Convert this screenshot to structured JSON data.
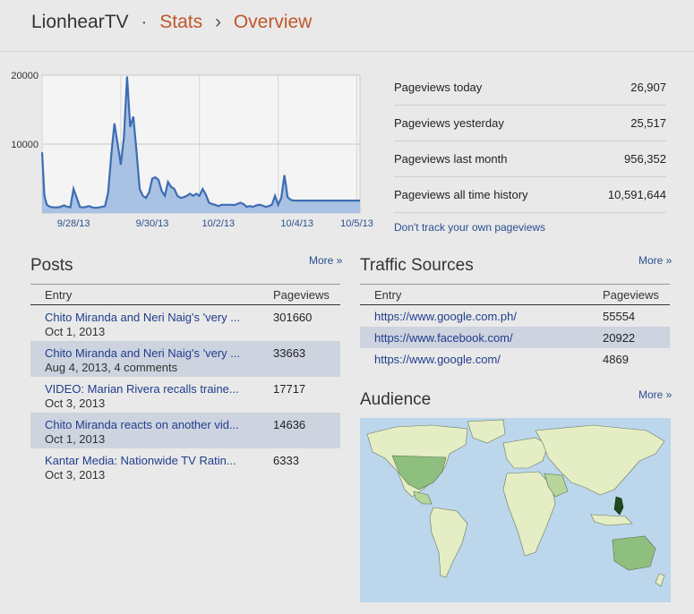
{
  "header": {
    "blog": "LionhearTV",
    "dot": "·",
    "stats": "Stats",
    "arrow": "›",
    "overview": "Overview"
  },
  "chart_data": {
    "type": "area",
    "ylim": [
      0,
      20000
    ],
    "yticks": [
      "20000",
      "10000"
    ],
    "xticks": [
      "9/28/13",
      "9/30/13",
      "10/2/13",
      "10/4/13",
      "10/5/13"
    ],
    "x": [
      0,
      0.15,
      0.3,
      0.5,
      0.8,
      1.1,
      1.4,
      1.6,
      1.8,
      2.0,
      2.2,
      2.4,
      2.6,
      2.8,
      3.0,
      3.2,
      3.4,
      3.6,
      3.8,
      4.0,
      4.2,
      4.4,
      4.6,
      4.8,
      5.0,
      5.2,
      5.4,
      5.6,
      5.8,
      6.0,
      6.2,
      6.4,
      6.6,
      6.8,
      7.0,
      7.2,
      7.4,
      7.6,
      7.8,
      8.0,
      8.2,
      8.4,
      8.6,
      8.8,
      9.0,
      9.2,
      9.4,
      9.6,
      9.8,
      10.0,
      10.2,
      10.4,
      10.6,
      10.8,
      11.0,
      11.2,
      11.4,
      11.6,
      11.8,
      12.0,
      12.2,
      12.4,
      12.6,
      12.8,
      13.0,
      13.2,
      13.4,
      13.6,
      13.8,
      14.0,
      14.2,
      14.4,
      14.6,
      14.8,
      15.0,
      15.2,
      15.4,
      15.6,
      15.8,
      16.0,
      16.2,
      16.4,
      16.6,
      16.8,
      17.0,
      17.2,
      17.4,
      17.6,
      17.8,
      18.0,
      18.2,
      18.4,
      18.6,
      18.8,
      19.0,
      19.2,
      19.4,
      19.6,
      19.8,
      20.0,
      20.2
    ],
    "values": [
      8800,
      2500,
      1200,
      900,
      800,
      850,
      1100,
      900,
      850,
      3500,
      2200,
      900,
      800,
      900,
      1000,
      800,
      750,
      800,
      900,
      1000,
      3000,
      8500,
      13000,
      10000,
      7000,
      11000,
      19800,
      12500,
      14000,
      9000,
      3500,
      2500,
      2200,
      3000,
      5000,
      5200,
      4800,
      3200,
      2500,
      4500,
      3800,
      3500,
      2500,
      2200,
      2300,
      2500,
      2800,
      2500,
      2800,
      2500,
      3500,
      2700,
      1500,
      1300,
      1200,
      1000,
      1200,
      1200,
      1200,
      1200,
      1150,
      1300,
      1500,
      1300,
      900,
      1000,
      900,
      1100,
      1200,
      1100,
      900,
      1000,
      1200,
      2500,
      1200,
      2200,
      5500,
      2300,
      1900,
      1800,
      1800,
      1800,
      1800,
      1800,
      1800,
      1800,
      1800,
      1800,
      1800,
      1800,
      1800,
      1800,
      1800,
      1800,
      1800,
      1800,
      1800,
      1800,
      1800,
      1800,
      1800
    ]
  },
  "summary": {
    "rows": [
      {
        "label": "Pageviews today",
        "value": "26,907"
      },
      {
        "label": "Pageviews yesterday",
        "value": "25,517"
      },
      {
        "label": "Pageviews last month",
        "value": "956,352"
      },
      {
        "label": "Pageviews all time history",
        "value": "10,591,644"
      }
    ],
    "track_link": "Don't track your own pageviews"
  },
  "posts": {
    "title": "Posts",
    "more": "More »",
    "col_entry": "Entry",
    "col_pageviews": "Pageviews",
    "rows": [
      {
        "title": "Chito Miranda and Neri Naig's 'very ...",
        "sub": "Oct 1, 2013",
        "views": "301660"
      },
      {
        "title": "Chito Miranda and Neri Naig's 'very ...",
        "sub": "Aug 4, 2013, 4 comments",
        "views": "33663"
      },
      {
        "title": "VIDEO: Marian Rivera recalls traine...",
        "sub": "Oct 3, 2013",
        "views": "17717"
      },
      {
        "title": "Chito Miranda reacts on another vid...",
        "sub": "Oct 1, 2013",
        "views": "14636"
      },
      {
        "title": "Kantar Media: Nationwide TV Ratin...",
        "sub": "Oct 3, 2013",
        "views": "6333"
      }
    ]
  },
  "traffic": {
    "title": "Traffic Sources",
    "more": "More »",
    "col_entry": "Entry",
    "col_pageviews": "Pageviews",
    "rows": [
      {
        "url": "https://www.google.com.ph/",
        "views": "55554"
      },
      {
        "url": "https://www.facebook.com/",
        "views": "20922"
      },
      {
        "url": "https://www.google.com/",
        "views": "4869"
      }
    ]
  },
  "audience": {
    "title": "Audience",
    "more": "More »"
  }
}
